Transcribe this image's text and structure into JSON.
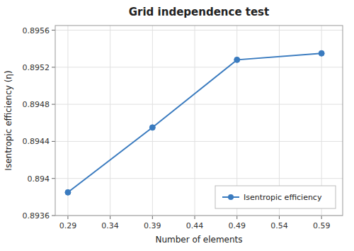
{
  "chart_data": {
    "type": "line",
    "title": "Grid independence test",
    "xlabel": "Number of elements",
    "ylabel": "Isentropic efficiency (η)",
    "x": [
      0.29,
      0.39,
      0.49,
      0.59
    ],
    "series": [
      {
        "name": "Isentropic efficiency",
        "color": "#3a7bbf",
        "marker": "circle",
        "line_style": "solid",
        "values": [
          0.89385,
          0.89455,
          0.89528,
          0.89535
        ]
      }
    ],
    "xlim": [
      0.275,
      0.615
    ],
    "ylim": [
      0.8936,
      0.89565
    ],
    "xticks": [
      0.29,
      0.34,
      0.39,
      0.44,
      0.49,
      0.54,
      0.59
    ],
    "yticks": [
      0.8936,
      0.894,
      0.8944,
      0.8948,
      0.8952,
      0.8956
    ],
    "grid": true,
    "legend": "lower right"
  }
}
